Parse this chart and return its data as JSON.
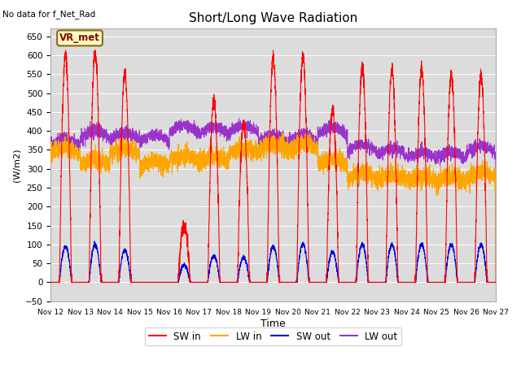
{
  "title": "Short/Long Wave Radiation",
  "top_left_text": "No data for f_Net_Rad",
  "ylabel": "(W/m2)",
  "xlabel": "Time",
  "legend_box_label": "VR_met",
  "ylim": [
    -50,
    670
  ],
  "colors": {
    "SW_in": "#FF0000",
    "LW_in": "#FFA500",
    "SW_out": "#0000DD",
    "LW_out": "#9933CC"
  },
  "background_color": "#DCDCDC",
  "n_days": 15,
  "start_day": 12,
  "peak_sw_in": [
    600,
    605,
    550,
    0,
    150,
    480,
    420,
    590,
    595,
    455,
    570,
    565,
    560,
    550,
    545
  ],
  "peak_sw_out": [
    95,
    100,
    85,
    0,
    45,
    70,
    65,
    95,
    100,
    80,
    100,
    100,
    100,
    100,
    100
  ],
  "base_lw_in": [
    340,
    310,
    340,
    305,
    320,
    315,
    340,
    350,
    350,
    310,
    275,
    270,
    265,
    265,
    275
  ],
  "base_lw_out": [
    360,
    380,
    375,
    370,
    395,
    390,
    395,
    370,
    370,
    390,
    345,
    335,
    325,
    325,
    340
  ]
}
